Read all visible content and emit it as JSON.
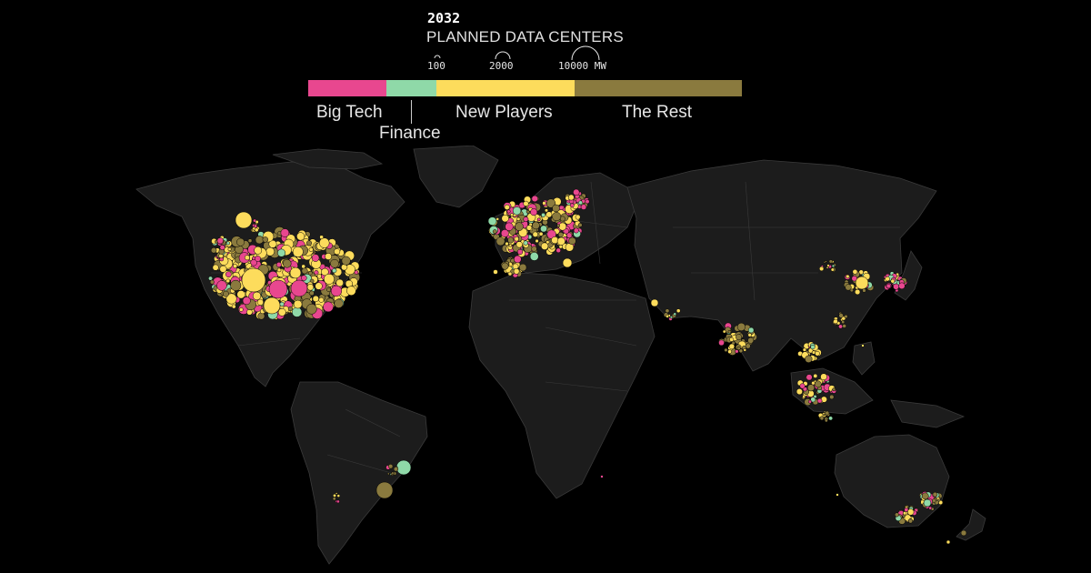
{
  "header": {
    "year": "2032",
    "title": "PLANNED DATA CENTERS",
    "size_legend": [
      {
        "label": "100",
        "mw": 100
      },
      {
        "label": "2000",
        "mw": 2000
      },
      {
        "label": "10000 MW",
        "mw": 10000
      }
    ]
  },
  "categories": [
    {
      "label": "Big Tech",
      "color": "#e8478f",
      "share": 0.18
    },
    {
      "label": "Finance",
      "color": "#8fd9a8",
      "share": 0.115
    },
    {
      "label": "New Players",
      "color": "#fddc5c",
      "share": 0.32
    },
    {
      "label": "The Rest",
      "color": "#8a7a3e",
      "share": 0.385
    }
  ],
  "map": {
    "land_color": "#1c1c1c",
    "border_color": "#3a3a3a",
    "background": "#000000"
  }
}
